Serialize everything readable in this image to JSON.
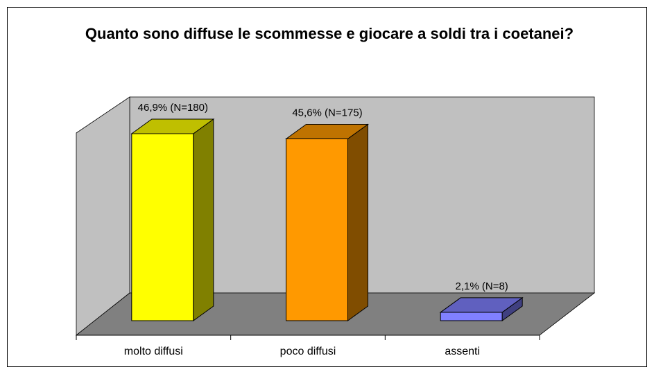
{
  "chart_data": {
    "type": "bar3d",
    "title": "Quanto sono diffuse le scommesse e giocare a soldi tra i coetanei?",
    "categories": [
      "molto diffusi",
      "poco diffusi",
      "assenti"
    ],
    "values": [
      46.9,
      45.6,
      2.1
    ],
    "value_labels": [
      "46,9% (N=180)",
      "45,6% (N=175)",
      "2,1% (N=8)"
    ],
    "colors": [
      "#ffff00",
      "#ff9900",
      "#8080ff"
    ]
  }
}
